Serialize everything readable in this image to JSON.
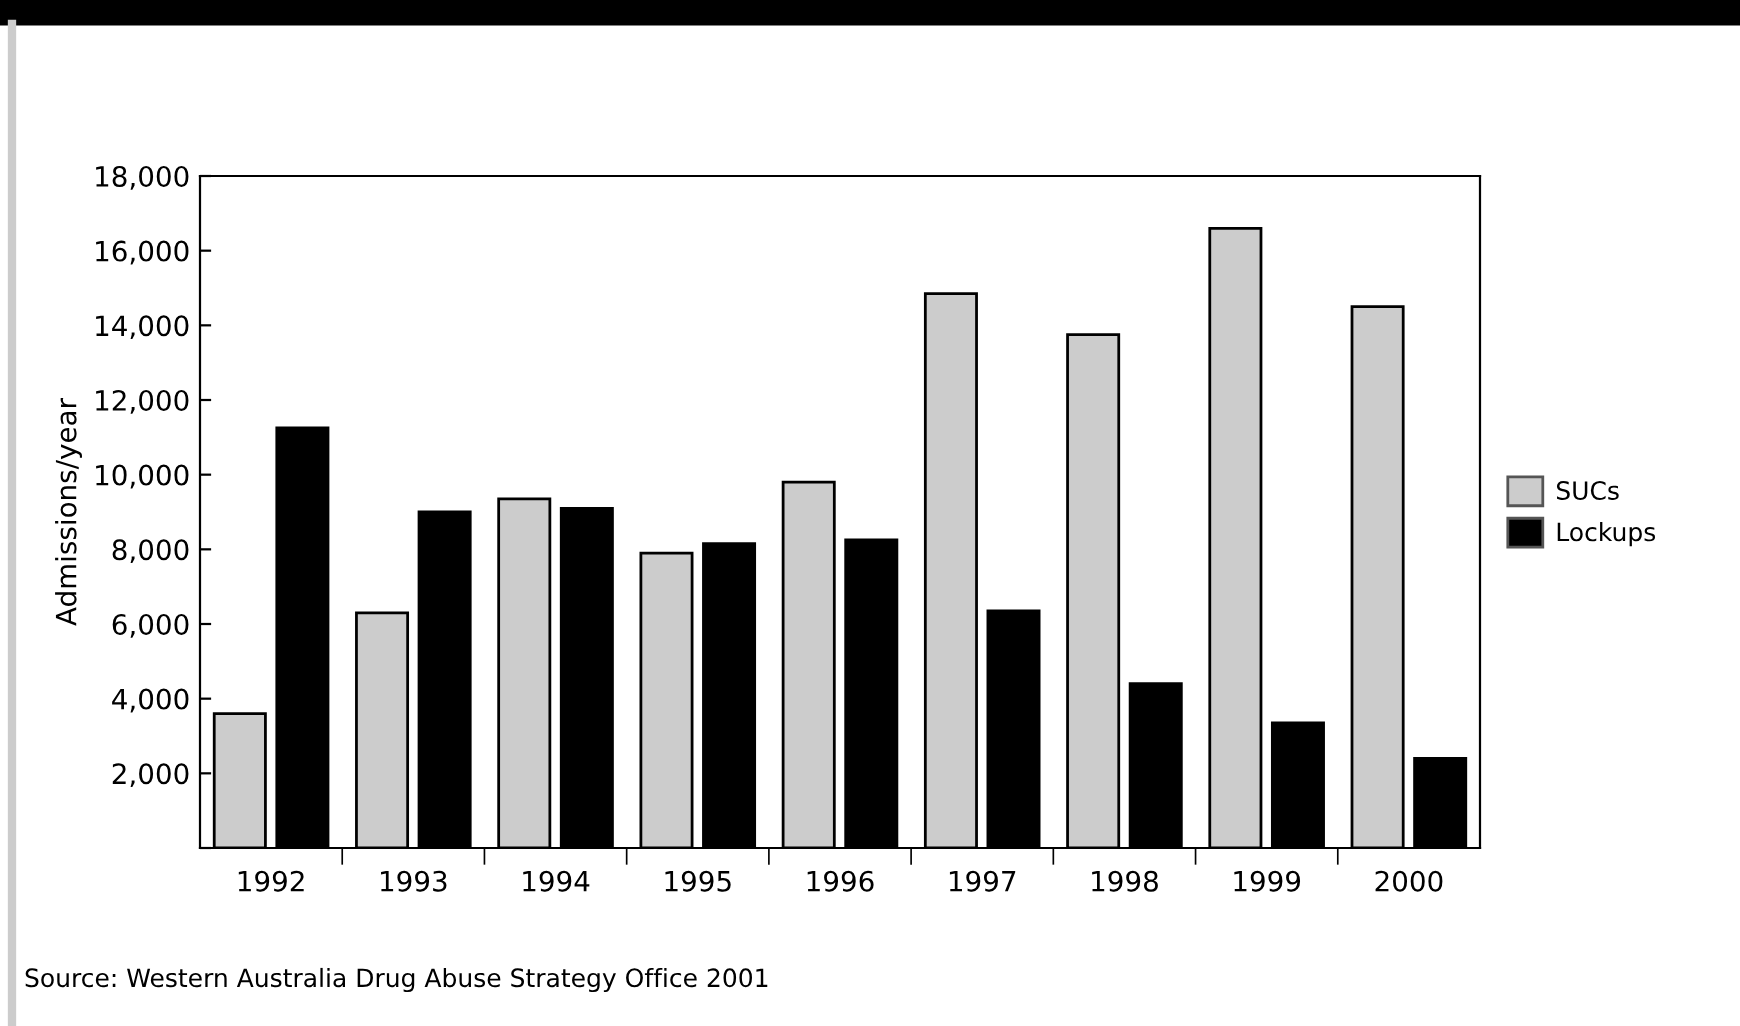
{
  "chart_data": {
    "type": "bar",
    "ylabel": "Admissions/year",
    "categories": [
      "1992",
      "1993",
      "1994",
      "1995",
      "1996",
      "1997",
      "1998",
      "1999",
      "2000"
    ],
    "series": [
      {
        "name": "SUCs",
        "color": "#cccccc",
        "values": [
          3600,
          6300,
          9350,
          7900,
          9800,
          14850,
          13750,
          16600,
          14500
        ]
      },
      {
        "name": "Lockups",
        "color": "#000000",
        "values": [
          11250,
          9000,
          9100,
          8150,
          8250,
          6350,
          4400,
          3350,
          2400
        ]
      }
    ],
    "ylim": [
      0,
      18000
    ],
    "yticks": [
      {
        "value": 0,
        "label": null
      },
      {
        "value": 2000,
        "label": "2,000"
      },
      {
        "value": 4000,
        "label": "4,000"
      },
      {
        "value": 6000,
        "label": "6,000"
      },
      {
        "value": 8000,
        "label": "8,000"
      },
      {
        "value": 10000,
        "label": "10,000"
      },
      {
        "value": 12000,
        "label": "12,000"
      },
      {
        "value": 14000,
        "label": "14,000"
      },
      {
        "value": 16000,
        "label": "16,000"
      },
      {
        "value": 18000,
        "label": "18,000"
      }
    ],
    "grid": false,
    "legend": "right",
    "annotations": [
      "Source: Western Australia Drug Abuse Strategy Office 2001"
    ]
  }
}
